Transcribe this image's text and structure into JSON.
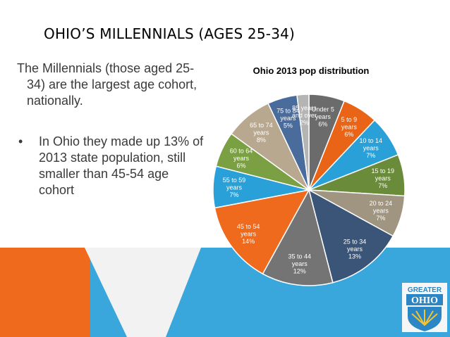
{
  "slide": {
    "title": "OHIO’S MILLENNIALS (AGES 25-34)",
    "paragraph": "The Millennials (those aged 25-34) are the largest age cohort, nationally.",
    "bullet": "•",
    "bullet_text": "In Ohio they made up 13% of 2013 state population, still smaller than 45-54 age cohort"
  },
  "logo": {
    "line1": "GREATER",
    "line2": "OHIO"
  },
  "colors": {
    "background_light": "#f2f2f2",
    "accent_orange": "#f06a1d",
    "accent_blue": "#3aa7dc",
    "logo_blue": "#2a86c4"
  },
  "chart_data": {
    "type": "pie",
    "title": "Ohio 2013 pop distribution",
    "legend": "none",
    "categories": [
      "Under 5 years",
      "5 to 9 years",
      "10 to 14 years",
      "15 to 19 years",
      "20 to 24 years",
      "25 to 34 years",
      "35 to 44 years",
      "45 to 54 years",
      "55 to 59 years",
      "60 to 64 years",
      "65 to 74 years",
      "75 to 84 years",
      "85 years and over"
    ],
    "values": [
      6,
      6,
      7,
      7,
      7,
      13,
      12,
      14,
      7,
      6,
      8,
      5,
      2
    ],
    "labels": [
      "6%",
      "6%",
      "7%",
      "7%",
      "7%",
      "13%",
      "12%",
      "14%",
      "7%",
      "6%",
      "8%",
      "5%",
      "2%"
    ],
    "colors": [
      "#6b6b6b",
      "#ea6417",
      "#2aa0d8",
      "#6a8b3a",
      "#a09580",
      "#3a5577",
      "#747474",
      "#f06a1d",
      "#2aa0d8",
      "#7aa043",
      "#b8a890",
      "#4a6c9c",
      "#b4b4b4"
    ]
  }
}
